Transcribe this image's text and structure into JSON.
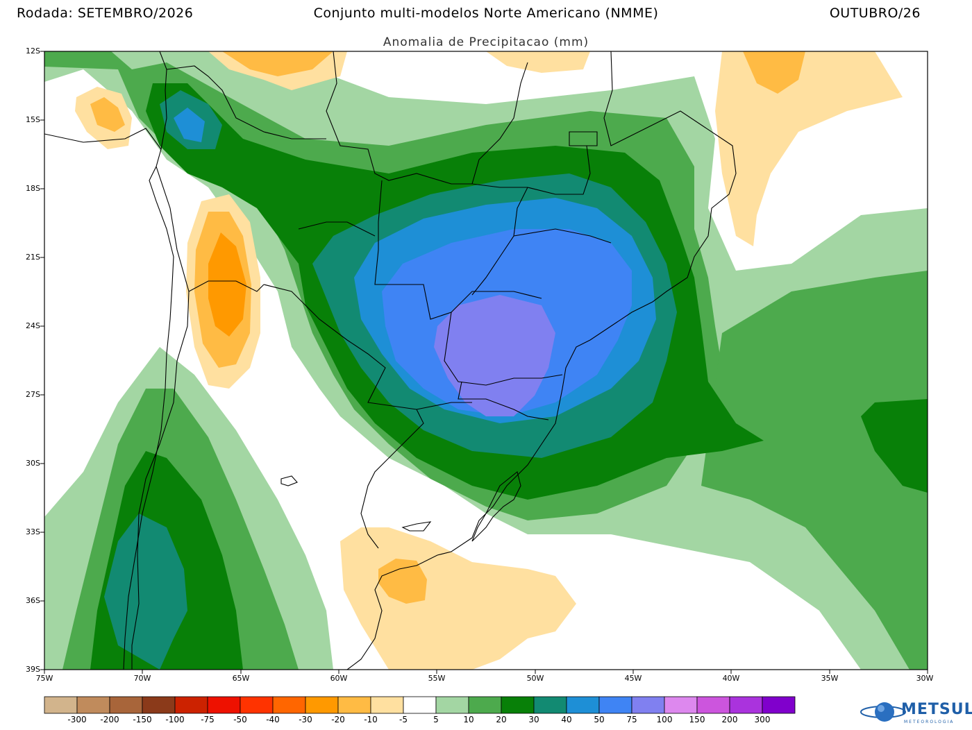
{
  "header": {
    "run": "Rodada: SETEMBRO/2026",
    "title": "Conjunto multi-modelos Norte Americano (NMME)",
    "period": "OUTUBRO/26"
  },
  "subtitle": "Anomalia de Precipitacao (mm)",
  "map": {
    "lon_range": [
      -75,
      -30
    ],
    "lat_range": [
      -39,
      -12
    ],
    "y_ticks": [
      "12S",
      "15S",
      "18S",
      "21S",
      "24S",
      "27S",
      "30S",
      "33S",
      "36S",
      "39S"
    ],
    "x_ticks": [
      "75W",
      "70W",
      "65W",
      "60W",
      "55W",
      "50W",
      "45W",
      "40W",
      "35W",
      "30W"
    ]
  },
  "colorbar": {
    "labels": [
      "-300",
      "-200",
      "-150",
      "-100",
      "-75",
      "-50",
      "-40",
      "-30",
      "-20",
      "-10",
      "-5",
      "5",
      "10",
      "20",
      "30",
      "40",
      "50",
      "75",
      "100",
      "150",
      "200",
      "300"
    ],
    "colors": [
      "#d2b48c",
      "#c08b5c",
      "#a8653a",
      "#8b3a1a",
      "#cc2200",
      "#ee1100",
      "#ff3300",
      "#ff6600",
      "#ff9900",
      "#ffbb44",
      "#ffe0a0",
      "#ffffff",
      "#a3d6a3",
      "#4daa4d",
      "#088008",
      "#128a72",
      "#1e8fd6",
      "#3f84f4",
      "#8080f0",
      "#dd88ee",
      "#cc55dd",
      "#aa33dd",
      "#8000cc"
    ]
  },
  "logo": {
    "name": "METSUL",
    "tagline": "METEOROLOGIA"
  }
}
